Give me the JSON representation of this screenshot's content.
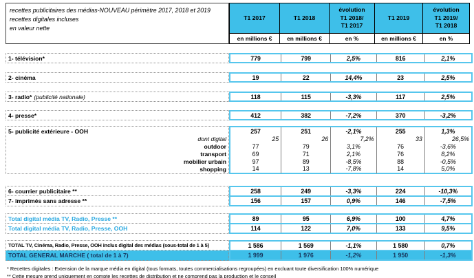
{
  "title": {
    "line1": "recettes publicitaires des médias-NOUVEAU périmètre 2017, 2018 et 2019 recettes digitales incluses",
    "line2": "en valeur nette"
  },
  "columns": [
    {
      "label": "T1 2017",
      "sub": "en millions €"
    },
    {
      "label": "T1 2018",
      "sub": "en millions €"
    },
    {
      "lines": [
        "évolution",
        "T1 2018/",
        "T1 2017"
      ],
      "sub": "en %"
    },
    {
      "label": "T1 2019",
      "sub": "en millions €"
    },
    {
      "lines": [
        "évolution",
        "T1 2019/",
        "T1 2018"
      ],
      "sub": "en %"
    }
  ],
  "rows": [
    {
      "label": "1- télévision*",
      "values": [
        "779",
        "799",
        "2,5%",
        "816",
        "2,1%"
      ]
    },
    {
      "label": "2- cinéma",
      "values": [
        "19",
        "22",
        "14,4%",
        "23",
        "2,5%"
      ]
    },
    {
      "label": "3- radio*",
      "note": "(publicité nationale)",
      "values": [
        "118",
        "115",
        "-3,3%",
        "117",
        "2,5%"
      ]
    },
    {
      "label": "4- presse*",
      "values": [
        "412",
        "382",
        "-7,2%",
        "370",
        "-3,2%"
      ]
    },
    {
      "label": "5- publicité extérieure - OOH",
      "subrows": [
        {
          "label": "",
          "values": [
            "257",
            "251",
            "-2,1%",
            "255",
            "1,3%"
          ]
        },
        {
          "label": "dont digital",
          "values": [
            "25",
            "26",
            "7,2%",
            "33",
            "26,5%"
          ]
        },
        {
          "label": "outdoor",
          "values": [
            "77",
            "79",
            "3,1%",
            "76",
            "-3,6%"
          ]
        },
        {
          "label": "transport",
          "values": [
            "69",
            "71",
            "2,1%",
            "76",
            "8,2%"
          ]
        },
        {
          "label": "mobilier urbain",
          "values": [
            "97",
            "89",
            "-8,5%",
            "88",
            "-0,5%"
          ]
        },
        {
          "label": "shopping",
          "values": [
            "14",
            "13",
            "-7,8%",
            "14",
            "5,0%"
          ]
        }
      ]
    },
    {
      "label": "6- courrier publicitaire **",
      "values": [
        "258",
        "249",
        "-3,3%",
        "224",
        "-10,3%"
      ]
    },
    {
      "label": "7- imprimés sans adresse **",
      "values": [
        "156",
        "157",
        "0,9%",
        "146",
        "-7,5%"
      ]
    },
    {
      "label": "Total digital média TV, Radio, Presse **",
      "values": [
        "89",
        "95",
        "6,9%",
        "100",
        "4,7%"
      ]
    },
    {
      "label": "Total digital média TV, Radio, Presse, OOH",
      "values": [
        "114",
        "122",
        "7,0%",
        "133",
        "9,5%"
      ]
    },
    {
      "label": "TOTAL TV, Cinéma, Radio, Presse, OOH inclus digital des médias (sous-total de 1 à 5)",
      "values": [
        "1 586",
        "1 569",
        "-1,1%",
        "1 580",
        "0,7%"
      ]
    },
    {
      "label": "TOTAL GENERAL MARCHE ( total de 1 à 7)",
      "values": [
        "1 999",
        "1 976",
        "-1,2%",
        "1 950",
        "-1,3%"
      ]
    }
  ],
  "footnotes": [
    "* Recettes digitales : Extension de la marque média en digital (tous formats, toutes commercialisations regroupées) en excluant toute diversification 100% numérique",
    "** Cette mesure prend uniquement en compte les recettes de distribution et ne comprend pas la production et le conseil"
  ],
  "colors": {
    "accent_fill": "#3EBFE9",
    "accent_border": "#55C6ED",
    "accent_text": "#29A9E1",
    "highlight_text": "#17365D",
    "grid_separator": "#7f7f7f"
  }
}
